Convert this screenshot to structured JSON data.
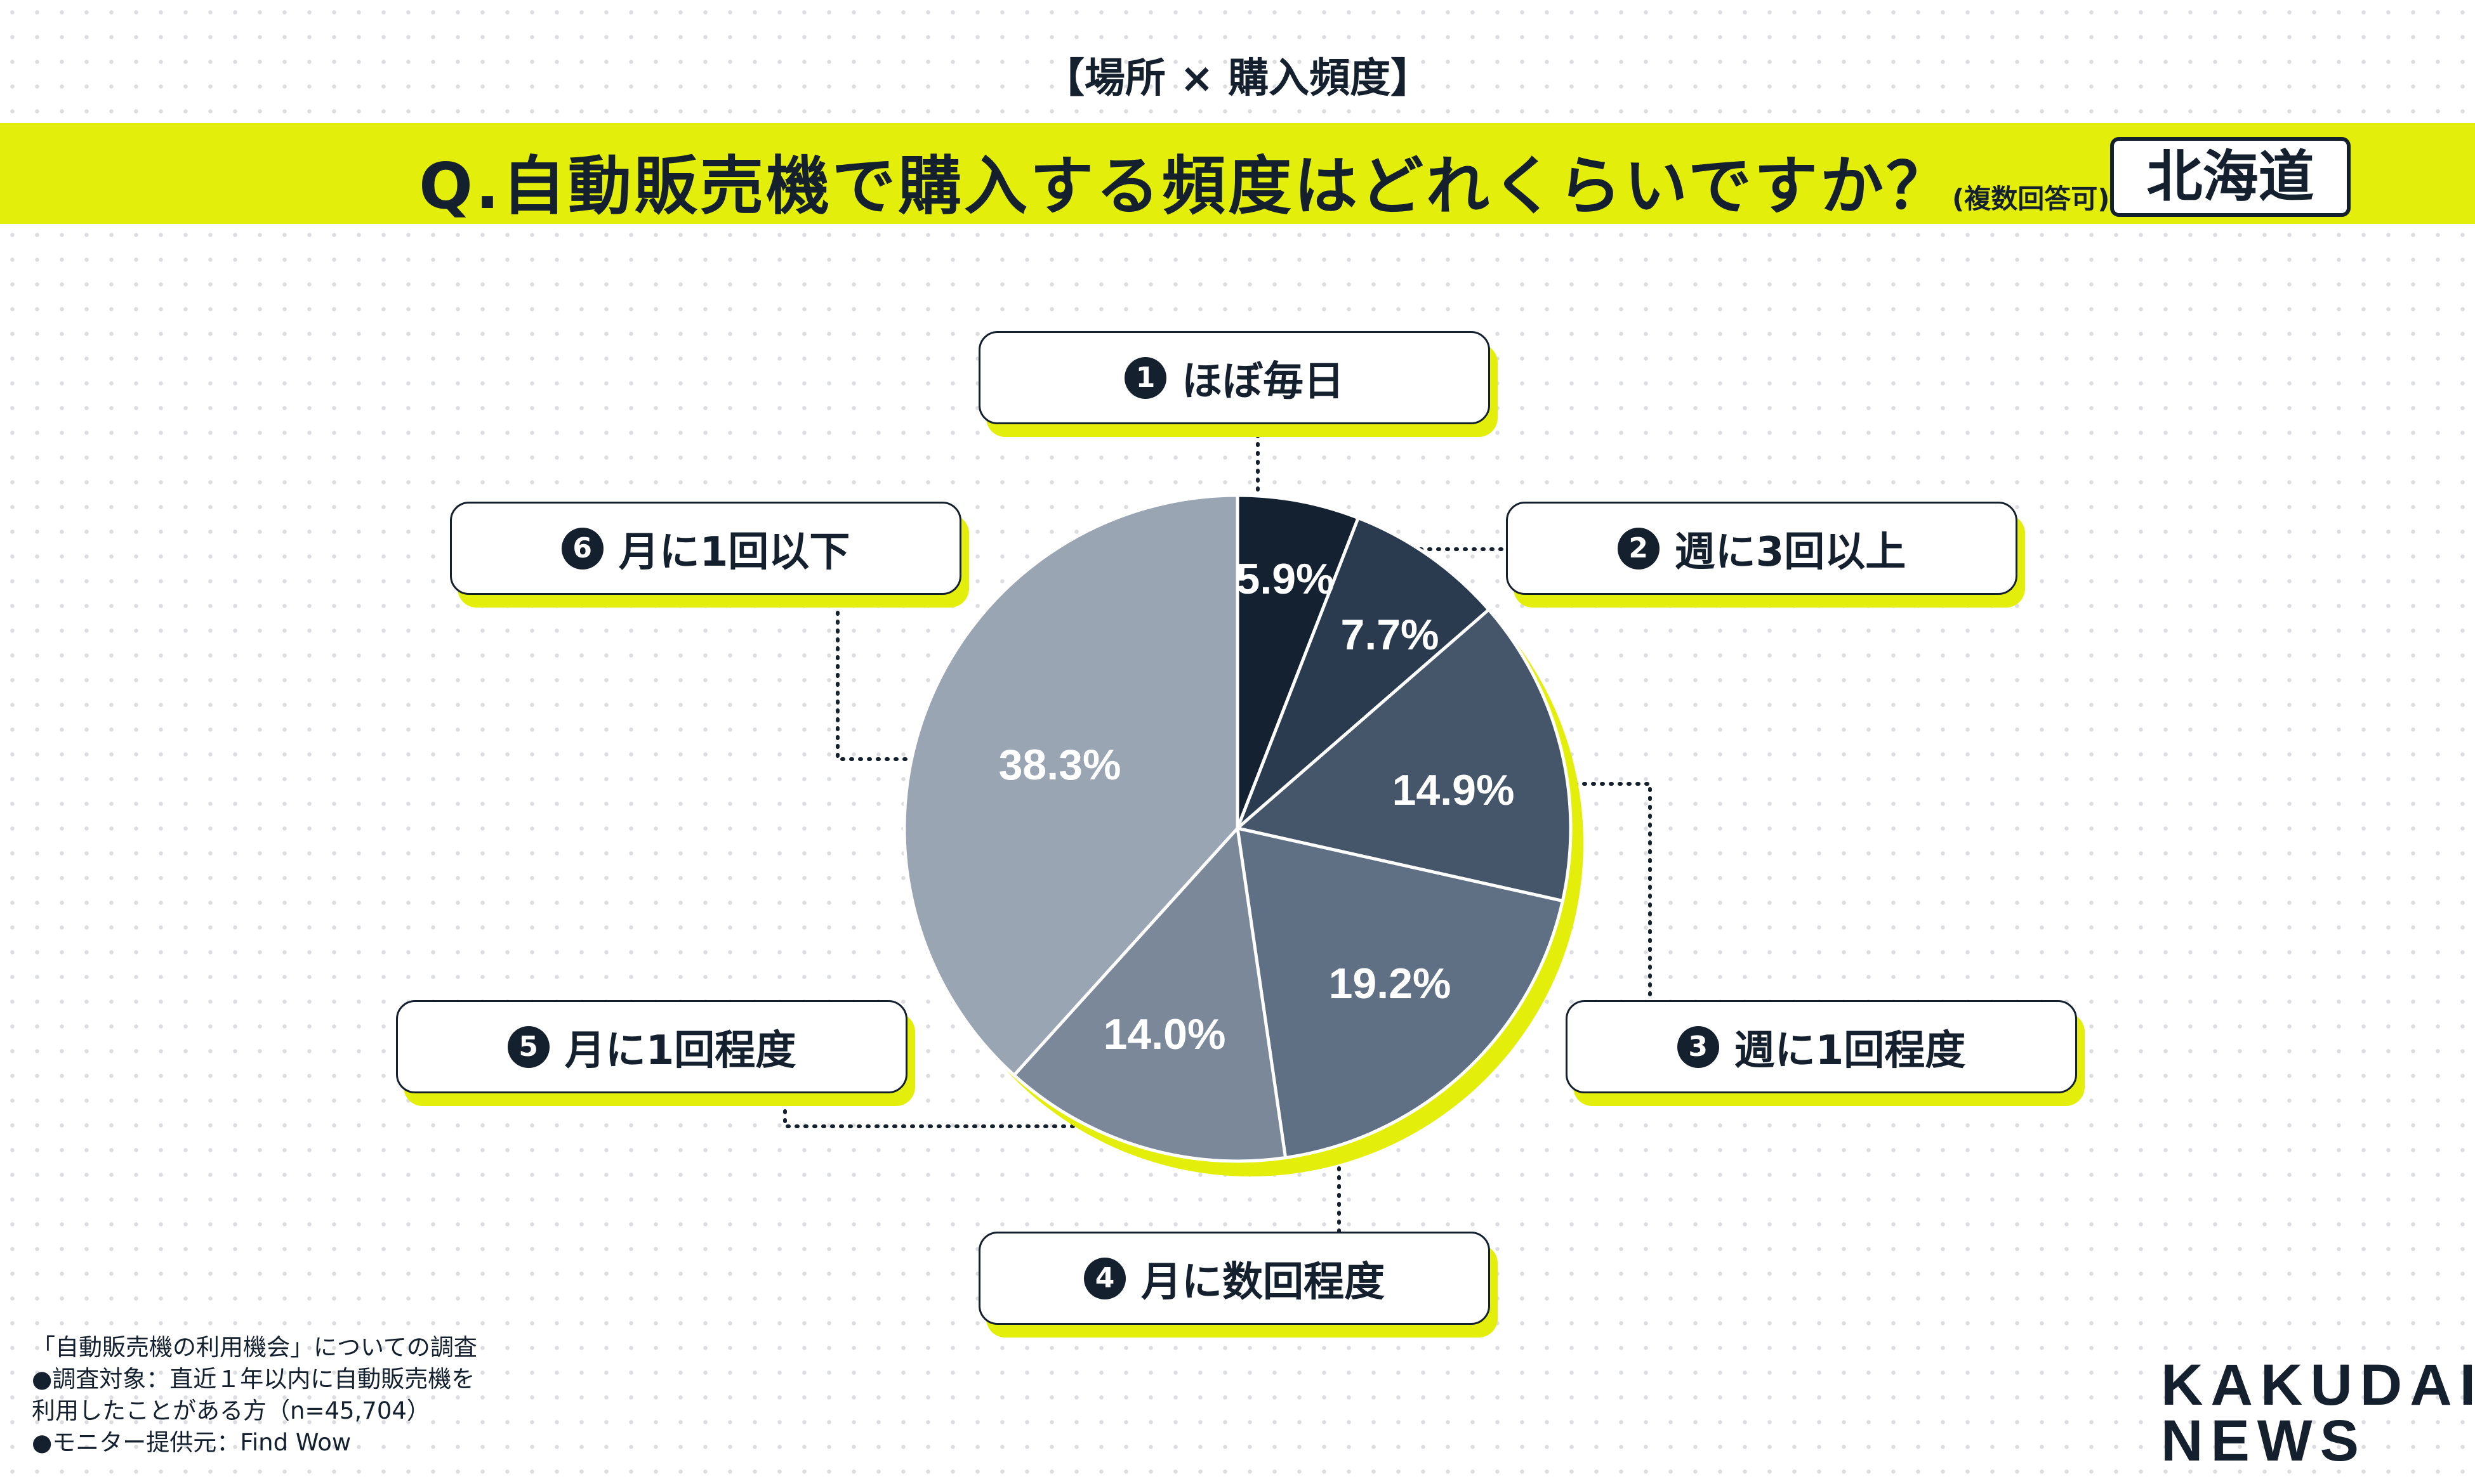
{
  "header": {
    "topic": "【場所 × 購入頻度】",
    "question": "Q.自動販売機で購入する頻度はどれくらいですか？",
    "question_note": "(複数回答可)",
    "region": "北海道"
  },
  "colors": {
    "accent": "#e3ef0a",
    "text": "#14202e"
  },
  "chart_data": {
    "type": "pie",
    "start": "12 o'clock, clockwise",
    "slices": [
      {
        "num": "1",
        "name": "ほぼ毎日",
        "value": 5.9,
        "label": "5.9%",
        "color": "#132131"
      },
      {
        "num": "2",
        "name": "週に3回以上",
        "value": 7.7,
        "label": "7.7%",
        "color": "#2b3b4f"
      },
      {
        "num": "3",
        "name": "週に1回程度",
        "value": 14.9,
        "label": "14.9%",
        "color": "#45566b"
      },
      {
        "num": "4",
        "name": "月に数回程度",
        "value": 19.2,
        "label": "19.2%",
        "color": "#5f6f84"
      },
      {
        "num": "5",
        "name": "月に1回程度",
        "value": 14.0,
        "label": "14.0%",
        "color": "#7a8899"
      },
      {
        "num": "6",
        "name": "月に1回以下",
        "value": 38.3,
        "label": "38.3%",
        "color": "#9aa5b3"
      }
    ]
  },
  "footer": {
    "lines": [
      "「自動販売機の利用機会」についての調査",
      "●調査対象：直近１年以内に自動販売機を",
      "利用したことがある方（n=45,704）",
      "●モニター提供元：Find Wow"
    ]
  },
  "logo": {
    "line1": "KAKUDAI",
    "line2": "NEWS"
  }
}
